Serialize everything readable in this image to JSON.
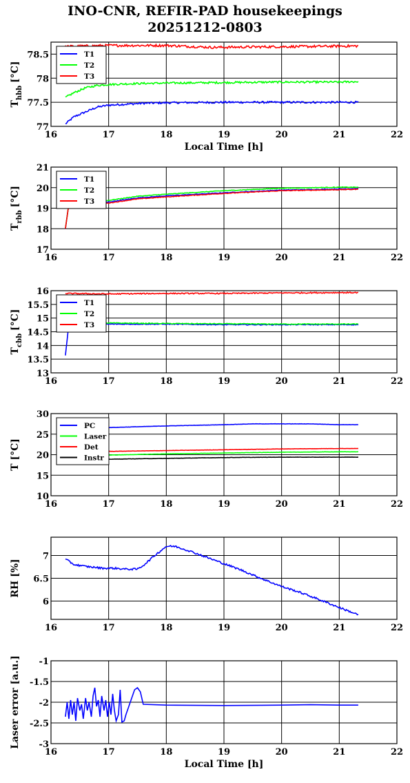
{
  "title": {
    "line1": "INO-CNR, REFIR-PAD housekeepings",
    "line2": "20251212-0803"
  },
  "colors": {
    "blue": "#0000ff",
    "green": "#00ff00",
    "red": "#ff0000",
    "black": "#000000"
  },
  "chart_data": [
    {
      "type": "line",
      "ylabel_main": "T",
      "ylabel_sub": "hbb",
      "ylabel_unit": "[°C]",
      "xlabel": "Local Time [h]",
      "xlim": [
        16,
        22
      ],
      "xticks": [
        "16",
        "17",
        "18",
        "19",
        "20",
        "21",
        "22"
      ],
      "ylim": [
        77,
        78.75
      ],
      "yticks": [
        "77",
        "77.5",
        "78",
        "78.5"
      ],
      "ytick_values": [
        77,
        77.5,
        78,
        78.5
      ],
      "grid": true,
      "legend": "top-left",
      "series": [
        {
          "name": "T1",
          "color": "#0000ff",
          "noise": 0.02,
          "points": [
            [
              16.25,
              77.05
            ],
            [
              16.4,
              77.2
            ],
            [
              16.6,
              77.3
            ],
            [
              16.8,
              77.4
            ],
            [
              17,
              77.44
            ],
            [
              17.3,
              77.46
            ],
            [
              17.6,
              77.48
            ],
            [
              18,
              77.49
            ],
            [
              19,
              77.5
            ],
            [
              20,
              77.5
            ],
            [
              21,
              77.5
            ],
            [
              21.33,
              77.5
            ]
          ]
        },
        {
          "name": "T2",
          "color": "#00ff00",
          "noise": 0.02,
          "points": [
            [
              16.25,
              77.6
            ],
            [
              16.4,
              77.7
            ],
            [
              16.6,
              77.8
            ],
            [
              16.8,
              77.85
            ],
            [
              17,
              77.87
            ],
            [
              17.5,
              77.89
            ],
            [
              18,
              77.9
            ],
            [
              19,
              77.91
            ],
            [
              20,
              77.92
            ],
            [
              21,
              77.92
            ],
            [
              21.33,
              77.93
            ]
          ]
        },
        {
          "name": "T3",
          "color": "#ff0000",
          "noise": 0.025,
          "points": [
            [
              16.25,
              78.66
            ],
            [
              17,
              78.68
            ],
            [
              18,
              78.68
            ],
            [
              18.8,
              78.64
            ],
            [
              19.5,
              78.65
            ],
            [
              20.5,
              78.66
            ],
            [
              21.33,
              78.67
            ]
          ]
        }
      ]
    },
    {
      "type": "line",
      "ylabel_main": "T",
      "ylabel_sub": "rbb",
      "ylabel_unit": "[°C]",
      "xlabel": "",
      "xlim": [
        16,
        22
      ],
      "xticks": [
        "16",
        "17",
        "18",
        "19",
        "20",
        "21",
        "22"
      ],
      "ylim": [
        17,
        21
      ],
      "yticks": [
        "17",
        "18",
        "19",
        "20",
        "21"
      ],
      "ytick_values": [
        17,
        18,
        19,
        20,
        21
      ],
      "grid": true,
      "legend": "top-left",
      "series": [
        {
          "name": "T1",
          "color": "#0000ff",
          "noise": 0.015,
          "points": [
            [
              16.25,
              18.0
            ],
            [
              16.3,
              19.0
            ],
            [
              16.5,
              19.15
            ],
            [
              17,
              19.3
            ],
            [
              17.5,
              19.5
            ],
            [
              18,
              19.6
            ],
            [
              19,
              19.75
            ],
            [
              20,
              19.88
            ],
            [
              21,
              19.93
            ],
            [
              21.33,
              19.95
            ]
          ]
        },
        {
          "name": "T2",
          "color": "#00ff00",
          "noise": 0.015,
          "points": [
            [
              16.25,
              18.0
            ],
            [
              16.3,
              19.0
            ],
            [
              16.5,
              19.2
            ],
            [
              17,
              19.38
            ],
            [
              17.5,
              19.58
            ],
            [
              18,
              19.68
            ],
            [
              19,
              19.85
            ],
            [
              20,
              19.97
            ],
            [
              21,
              20.02
            ],
            [
              21.33,
              20.02
            ]
          ]
        },
        {
          "name": "T3",
          "color": "#ff0000",
          "noise": 0.015,
          "points": [
            [
              16.25,
              18.0
            ],
            [
              16.3,
              19.0
            ],
            [
              16.5,
              19.1
            ],
            [
              17,
              19.25
            ],
            [
              17.5,
              19.45
            ],
            [
              18,
              19.55
            ],
            [
              19,
              19.72
            ],
            [
              20,
              19.85
            ],
            [
              21,
              19.9
            ],
            [
              21.33,
              19.92
            ]
          ]
        }
      ]
    },
    {
      "type": "line",
      "ylabel_main": "T",
      "ylabel_sub": "cbb",
      "ylabel_unit": "[°C]",
      "xlabel": "",
      "xlim": [
        16,
        22
      ],
      "xticks": [
        "16",
        "17",
        "18",
        "19",
        "20",
        "21",
        "22"
      ],
      "ylim": [
        13,
        16
      ],
      "yticks": [
        "13",
        "13.5",
        "14",
        "14.5",
        "15",
        "15.5",
        "16"
      ],
      "ytick_values": [
        13,
        13.5,
        14,
        14.5,
        15,
        15.5,
        16
      ],
      "grid": true,
      "legend": "top-left",
      "series": [
        {
          "name": "T1",
          "color": "#0000ff",
          "noise": 0.015,
          "points": [
            [
              16.25,
              13.65
            ],
            [
              16.3,
              14.6
            ],
            [
              16.5,
              14.75
            ],
            [
              17,
              14.78
            ],
            [
              18,
              14.78
            ],
            [
              19,
              14.76
            ],
            [
              20,
              14.76
            ],
            [
              21,
              14.76
            ],
            [
              21.33,
              14.76
            ]
          ]
        },
        {
          "name": "T2",
          "color": "#00ff00",
          "noise": 0.015,
          "points": [
            [
              16.25,
              14.7
            ],
            [
              16.4,
              14.8
            ],
            [
              17,
              14.82
            ],
            [
              18,
              14.8
            ],
            [
              19,
              14.79
            ],
            [
              20,
              14.78
            ],
            [
              21,
              14.78
            ],
            [
              21.33,
              14.78
            ]
          ]
        },
        {
          "name": "T3",
          "color": "#ff0000",
          "noise": 0.02,
          "points": [
            [
              16.25,
              15.9
            ],
            [
              17,
              15.88
            ],
            [
              18,
              15.9
            ],
            [
              19,
              15.9
            ],
            [
              20,
              15.92
            ],
            [
              21,
              15.93
            ],
            [
              21.33,
              15.93
            ]
          ]
        }
      ]
    },
    {
      "type": "line",
      "ylabel_main": "T [°C]",
      "ylabel_sub": "",
      "ylabel_unit": "",
      "xlabel": "",
      "xlim": [
        16,
        22
      ],
      "xticks": [
        "16",
        "17",
        "18",
        "19",
        "20",
        "21",
        "22"
      ],
      "ylim": [
        10,
        30
      ],
      "yticks": [
        "10",
        "15",
        "20",
        "25",
        "30"
      ],
      "ytick_values": [
        10,
        15,
        20,
        25,
        30
      ],
      "grid": true,
      "legend": "top-left",
      "series": [
        {
          "name": "PC",
          "color": "#0000ff",
          "noise": 0.03,
          "points": [
            [
              16.25,
              26.3
            ],
            [
              17,
              26.6
            ],
            [
              18,
              27.0
            ],
            [
              19,
              27.3
            ],
            [
              19.5,
              27.5
            ],
            [
              20.5,
              27.5
            ],
            [
              21,
              27.3
            ],
            [
              21.33,
              27.3
            ]
          ]
        },
        {
          "name": "Laser",
          "color": "#00ff00",
          "noise": 0.03,
          "points": [
            [
              16.25,
              19.8
            ],
            [
              17,
              19.9
            ],
            [
              18,
              20.2
            ],
            [
              19,
              20.4
            ],
            [
              20,
              20.6
            ],
            [
              21,
              20.7
            ],
            [
              21.33,
              20.7
            ]
          ]
        },
        {
          "name": "Det",
          "color": "#ff0000",
          "noise": 0.03,
          "points": [
            [
              16.25,
              20.4
            ],
            [
              17,
              20.8
            ],
            [
              18,
              21.0
            ],
            [
              19,
              21.2
            ],
            [
              20,
              21.4
            ],
            [
              21,
              21.5
            ],
            [
              21.33,
              21.5
            ]
          ]
        },
        {
          "name": "Instr",
          "color": "#000000",
          "noise": 0.03,
          "points": [
            [
              16.25,
              18.8
            ],
            [
              17,
              18.9
            ],
            [
              18,
              19.1
            ],
            [
              19,
              19.3
            ],
            [
              20,
              19.4
            ],
            [
              21,
              19.4
            ],
            [
              21.33,
              19.4
            ]
          ]
        }
      ]
    },
    {
      "type": "line",
      "ylabel_main": "RH [%]",
      "ylabel_sub": "",
      "ylabel_unit": "",
      "xlabel": "",
      "xlim": [
        16,
        22
      ],
      "xticks": [
        "16",
        "17",
        "18",
        "19",
        "20",
        "21",
        "22"
      ],
      "ylim": [
        5.6,
        7.4
      ],
      "yticks": [
        "6",
        "6.5",
        "7"
      ],
      "ytick_values": [
        6,
        6.5,
        7
      ],
      "grid": true,
      "legend": "",
      "series": [
        {
          "name": "",
          "color": "#0000ff",
          "noise": 0.02,
          "points": [
            [
              16.25,
              6.92
            ],
            [
              16.4,
              6.8
            ],
            [
              16.6,
              6.76
            ],
            [
              16.9,
              6.72
            ],
            [
              17.1,
              6.72
            ],
            [
              17.3,
              6.7
            ],
            [
              17.5,
              6.7
            ],
            [
              17.6,
              6.78
            ],
            [
              17.8,
              7.0
            ],
            [
              18.0,
              7.2
            ],
            [
              18.15,
              7.2
            ],
            [
              18.4,
              7.1
            ],
            [
              18.7,
              6.96
            ],
            [
              19.0,
              6.82
            ],
            [
              19.3,
              6.68
            ],
            [
              19.6,
              6.52
            ],
            [
              20.0,
              6.32
            ],
            [
              20.3,
              6.2
            ],
            [
              20.6,
              6.06
            ],
            [
              21.0,
              5.86
            ],
            [
              21.33,
              5.7
            ]
          ]
        }
      ]
    },
    {
      "type": "line",
      "ylabel_main": "Laser error [a.u.]",
      "ylabel_sub": "",
      "ylabel_unit": "",
      "xlabel": "Local Time [h]",
      "xlim": [
        16,
        22
      ],
      "xticks": [
        "16",
        "17",
        "18",
        "19",
        "20",
        "21",
        "22"
      ],
      "ylim": [
        -3,
        -1
      ],
      "yticks": [
        "-3",
        "-2.5",
        "-2",
        "-1.5",
        "-1"
      ],
      "ytick_values": [
        -3,
        -2.5,
        -2,
        -1.5,
        -1
      ],
      "grid": true,
      "legend": "",
      "series": [
        {
          "name": "",
          "color": "#0000ff",
          "noise": 0.0,
          "points": [
            [
              16.25,
              -2.35
            ],
            [
              16.28,
              -2.0
            ],
            [
              16.31,
              -2.4
            ],
            [
              16.34,
              -1.95
            ],
            [
              16.37,
              -2.3
            ],
            [
              16.4,
              -2.0
            ],
            [
              16.43,
              -2.45
            ],
            [
              16.46,
              -1.9
            ],
            [
              16.5,
              -2.2
            ],
            [
              16.53,
              -2.05
            ],
            [
              16.56,
              -2.4
            ],
            [
              16.6,
              -1.9
            ],
            [
              16.63,
              -2.2
            ],
            [
              16.66,
              -2.0
            ],
            [
              16.7,
              -2.35
            ],
            [
              16.73,
              -1.85
            ],
            [
              16.76,
              -1.65
            ],
            [
              16.79,
              -2.1
            ],
            [
              16.82,
              -1.95
            ],
            [
              16.85,
              -2.35
            ],
            [
              16.88,
              -1.85
            ],
            [
              16.92,
              -2.2
            ],
            [
              16.95,
              -1.95
            ],
            [
              16.98,
              -2.35
            ],
            [
              17.01,
              -2.0
            ],
            [
              17.04,
              -2.3
            ],
            [
              17.07,
              -1.8
            ],
            [
              17.1,
              -2.2
            ],
            [
              17.13,
              -2.45
            ],
            [
              17.17,
              -2.3
            ],
            [
              17.2,
              -1.7
            ],
            [
              17.23,
              -2.48
            ],
            [
              17.27,
              -2.45
            ],
            [
              17.3,
              -2.3
            ],
            [
              17.35,
              -2.1
            ],
            [
              17.4,
              -1.9
            ],
            [
              17.45,
              -1.7
            ],
            [
              17.5,
              -1.65
            ],
            [
              17.55,
              -1.75
            ],
            [
              17.6,
              -2.05
            ],
            [
              18.0,
              -2.07
            ],
            [
              19.0,
              -2.08
            ],
            [
              20.0,
              -2.07
            ],
            [
              20.5,
              -2.06
            ],
            [
              21.0,
              -2.07
            ],
            [
              21.33,
              -2.07
            ]
          ]
        }
      ]
    }
  ]
}
